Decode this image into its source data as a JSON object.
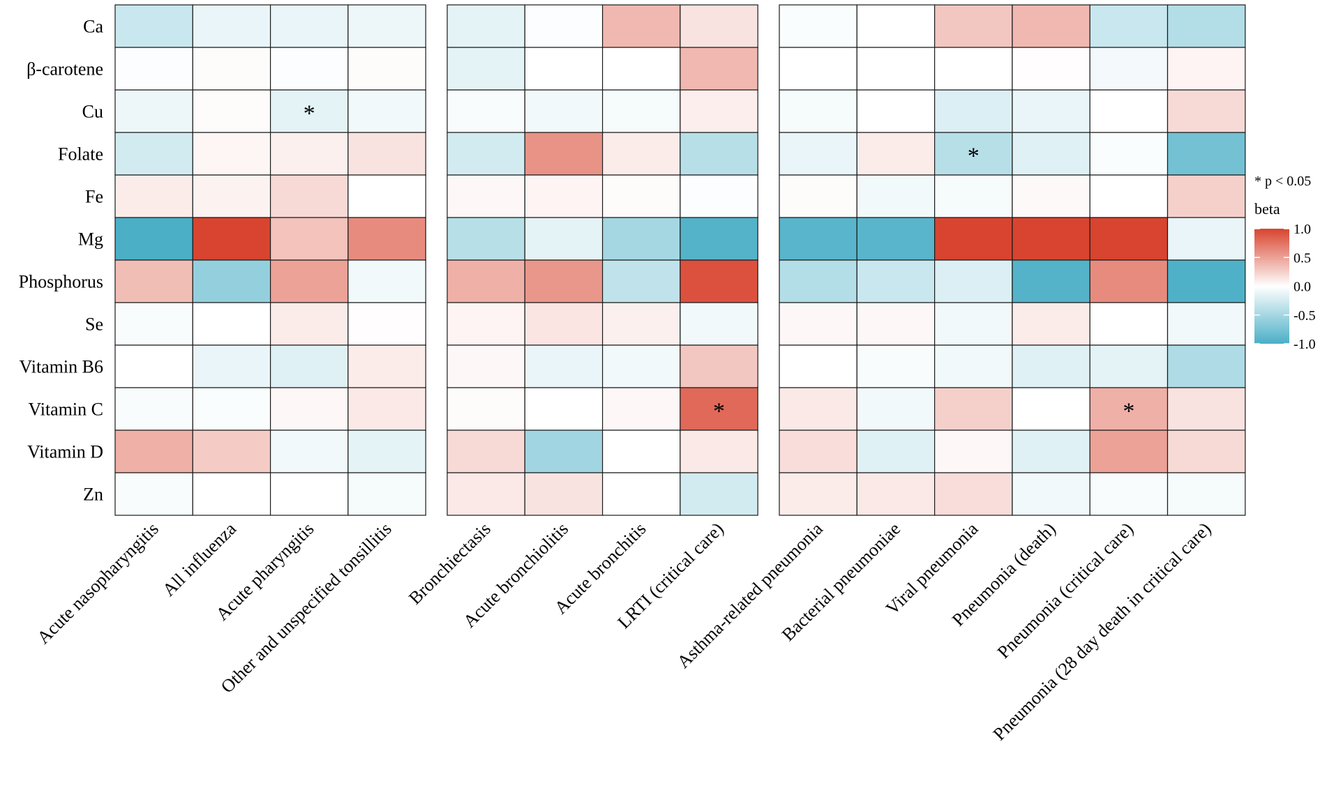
{
  "chart_data": {
    "type": "heatmap",
    "title": "",
    "rows": [
      "Ca",
      "β-carotene",
      "Cu",
      "Folate",
      "Fe",
      "Mg",
      "Phosphorus",
      "Se",
      "Vitamin B6",
      "Vitamin C",
      "Vitamin D",
      "Zn"
    ],
    "panels": [
      {
        "columns": [
          "Acute nasopharyngitis",
          "All influenza",
          "Acute pharyngitis",
          "Other and unspecified tonsillitis"
        ],
        "values": [
          [
            -0.3,
            -0.12,
            -0.12,
            -0.1
          ],
          [
            -0.02,
            0.02,
            -0.02,
            0.02
          ],
          [
            -0.1,
            0.02,
            -0.15,
            -0.08
          ],
          [
            -0.25,
            0.05,
            0.08,
            0.15
          ],
          [
            0.1,
            0.07,
            0.2,
            0.0
          ],
          [
            -1.0,
            1.0,
            0.32,
            0.62
          ],
          [
            0.35,
            -0.6,
            0.5,
            -0.08
          ],
          [
            -0.04,
            0.0,
            0.1,
            0.01
          ],
          [
            0.0,
            -0.12,
            -0.18,
            0.1
          ],
          [
            -0.04,
            -0.03,
            0.04,
            0.12
          ],
          [
            0.42,
            0.28,
            -0.07,
            -0.15
          ],
          [
            -0.04,
            0.0,
            0.0,
            -0.05
          ]
        ],
        "significant": [
          [
            2,
            2
          ]
        ]
      },
      {
        "columns": [
          "Bronchiectasis",
          "Acute bronchiolitis",
          "Acute bronchitis",
          "LRTI (critical care)"
        ],
        "values": [
          [
            -0.15,
            -0.02,
            0.38,
            0.15
          ],
          [
            -0.15,
            0.0,
            0.0,
            0.38
          ],
          [
            -0.04,
            -0.08,
            -0.05,
            0.09
          ],
          [
            -0.25,
            0.58,
            0.1,
            -0.4
          ],
          [
            0.04,
            0.06,
            0.02,
            -0.02
          ],
          [
            -0.4,
            -0.15,
            -0.5,
            -0.95
          ],
          [
            0.42,
            0.56,
            -0.35,
            0.93
          ],
          [
            0.06,
            0.14,
            0.08,
            -0.08
          ],
          [
            0.04,
            -0.12,
            -0.08,
            0.3
          ],
          [
            0.02,
            0.0,
            0.04,
            0.8
          ],
          [
            0.2,
            -0.52,
            0.0,
            0.12
          ],
          [
            0.12,
            0.15,
            0.0,
            -0.25
          ]
        ],
        "significant": [
          [
            9,
            3
          ]
        ]
      },
      {
        "columns": [
          "Asthma-related pneumonia",
          "Bacterial pneumoniae",
          "Viral pneumonia",
          "Pneumonia (death)",
          "Pneumonia (critical care)",
          "Pneumonia (28 day death in critical care)"
        ],
        "values": [
          [
            -0.03,
            0.0,
            0.3,
            0.38,
            -0.3,
            -0.42
          ],
          [
            0.0,
            0.0,
            0.0,
            0.01,
            -0.06,
            0.06
          ],
          [
            -0.05,
            0.0,
            -0.2,
            -0.12,
            0.0,
            0.2
          ],
          [
            -0.12,
            0.1,
            -0.4,
            -0.18,
            -0.03,
            -0.78
          ],
          [
            0.02,
            -0.08,
            -0.05,
            0.03,
            0.0,
            0.25
          ],
          [
            -0.92,
            -0.92,
            1.0,
            1.0,
            1.0,
            -0.12
          ],
          [
            -0.42,
            -0.3,
            -0.2,
            -0.95,
            0.62,
            -0.98
          ],
          [
            0.04,
            0.04,
            -0.08,
            0.1,
            0.0,
            -0.08
          ],
          [
            0.0,
            -0.04,
            -0.08,
            -0.18,
            -0.15,
            -0.45
          ],
          [
            0.12,
            -0.08,
            0.25,
            0.0,
            0.42,
            0.15
          ],
          [
            0.18,
            -0.18,
            0.04,
            -0.18,
            0.5,
            0.2
          ],
          [
            0.1,
            0.12,
            0.18,
            -0.08,
            -0.04,
            -0.05
          ]
        ],
        "significant": [
          [
            3,
            2
          ],
          [
            9,
            4
          ]
        ]
      }
    ],
    "significance_label": "* p < 0.05",
    "significance_marker": "*",
    "legend": {
      "title": "beta",
      "range": [
        -1.0,
        1.0
      ],
      "ticks": [
        "1.0",
        "0.5",
        "0.0",
        "-0.5",
        "-1.0"
      ],
      "tick_values": [
        1.0,
        0.5,
        0.0,
        -0.5,
        -1.0
      ],
      "colors": {
        "low": "#4BAFC6",
        "mid": "#FFFFFF",
        "high": "#D8442F"
      }
    }
  }
}
